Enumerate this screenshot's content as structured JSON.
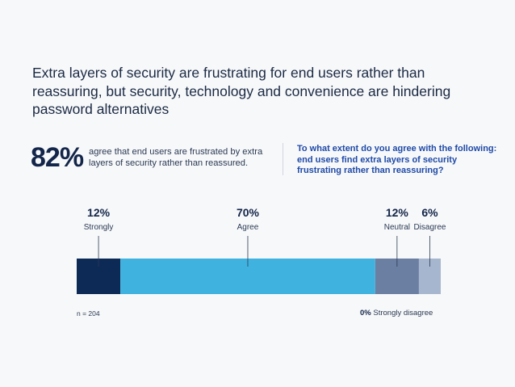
{
  "headline": "Extra layers of security are frustrating for end users rather than reassuring, but security, technology and convenience are hindering password alternatives",
  "stat": {
    "value": "82%",
    "text": "agree that end users are frustrated by extra layers of security rather than reassured."
  },
  "question": "To what extent do you agree with the following: end users find extra layers of security frustrating rather than reassuring?",
  "note": "n = 204",
  "zero_note": {
    "value": "0%",
    "label": "Strongly disagree"
  },
  "colors": {
    "strongly": "#0d2a57",
    "agree": "#40b2e0",
    "neutral": "#6b7fa3",
    "disagree": "#a7b6cf",
    "question_text": "#1f4aa8"
  },
  "chart_data": {
    "type": "bar",
    "orientation": "horizontal-stacked",
    "categories": [
      "Strongly",
      "Agree",
      "Neutral",
      "Disagree",
      "Strongly disagree"
    ],
    "values": [
      12,
      70,
      12,
      6,
      0
    ],
    "labels": [
      "12%",
      "70%",
      "12%",
      "6%",
      "0%"
    ],
    "unit": "%"
  }
}
